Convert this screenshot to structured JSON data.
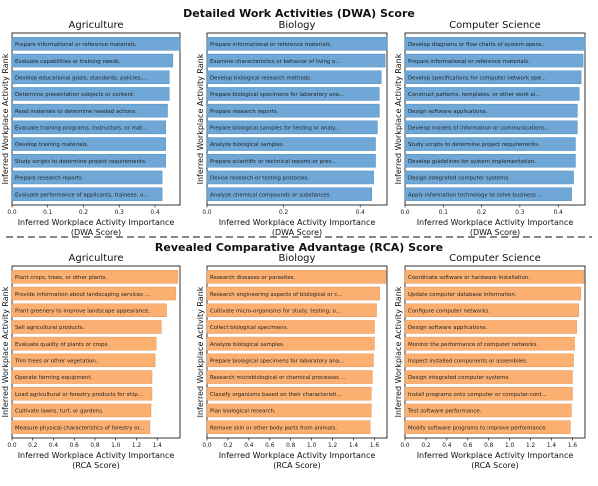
{
  "sections": [
    {
      "title": "Detailed Work Activities (DWA) Score"
    },
    {
      "title": "Revealed Comparative Advantage (RCA) Score"
    }
  ],
  "colors": {
    "dwa_bar": "#6fa8d6",
    "dwa_bar_edge": "#4f8fc0",
    "rca_bar": "#fbb071",
    "rca_bar_edge": "#e6955a",
    "divider": "#888888",
    "text": "#111111"
  },
  "chart_data": [
    {
      "type": "bar",
      "orientation": "horizontal",
      "section": 0,
      "title": "Agriculture",
      "xlabel": "Inferred Workplace Activity Importance\n(DWA Score)",
      "ylabel": "Inferred Workplace Activity Rank",
      "xlim": [
        0,
        0.47
      ],
      "xticks": [
        "0.0",
        "0.1",
        "0.2",
        "0.3",
        "0.4"
      ],
      "xtick_values": [
        0,
        0.1,
        0.2,
        0.3,
        0.4
      ],
      "categories": [
        "Prepare informational or reference materials.",
        "Evaluate capabilities or training needs.",
        "Develop educational goals, standards, policies,...",
        "Determine presentation subjects or content.",
        "Read materials to determine needed actions.",
        "Evaluate training programs, instructors, or mat...",
        "Develop training materials.",
        "Study scripts to determine project requirements.",
        "Prepare research reports.",
        "Evaluate performance of applicants, trainees, o..."
      ],
      "values": [
        0.47,
        0.45,
        0.44,
        0.44,
        0.435,
        0.43,
        0.43,
        0.43,
        0.42,
        0.42
      ]
    },
    {
      "type": "bar",
      "orientation": "horizontal",
      "section": 0,
      "title": "Biology",
      "xlabel": "Inferred Workplace Activity Importance\n(DWA Score)",
      "ylabel": "Inferred Workplace Activity Rank",
      "xlim": [
        0,
        0.47
      ],
      "xticks": [
        "0.0",
        "0.2",
        "0.4"
      ],
      "xtick_values": [
        0,
        0.2,
        0.4
      ],
      "categories": [
        "Prepare informational or reference materials.",
        "Examine characteristics or behavior of living o...",
        "Develop biological research methods.",
        "Prepare biological specimens for laboratory ana...",
        "Prepare research reports.",
        "Prepare biological samples for testing or analy...",
        "Analyze biological samples.",
        "Prepare scientific or technical reports or pres...",
        "Devise research or testing protocols.",
        "Analyze chemical compounds or substances."
      ],
      "values": [
        0.47,
        0.465,
        0.455,
        0.45,
        0.45,
        0.445,
        0.44,
        0.44,
        0.435,
        0.43
      ]
    },
    {
      "type": "bar",
      "orientation": "horizontal",
      "section": 0,
      "title": "Computer Science",
      "xlabel": "Inferred Workplace Activity Importance\n(DWA Score)",
      "ylabel": "Inferred Workplace Activity Rank",
      "xlim": [
        0,
        0.47
      ],
      "xticks": [
        "0.0",
        "0.1",
        "0.2",
        "0.3",
        "0.4"
      ],
      "xtick_values": [
        0,
        0.1,
        0.2,
        0.3,
        0.4
      ],
      "categories": [
        "Develop diagrams or flow charts of system opera...",
        "Prepare informational or reference materials.",
        "Develop specifications for computer network ope...",
        "Construct patterns, templates, or other work ai...",
        "Design software applications.",
        "Develop models of information or communications...",
        "Study scripts to determine project requirements.",
        "Develop guidelines for system implementation.",
        "Design integrated computer systems.",
        "Apply information technology to solve business ..."
      ],
      "values": [
        0.47,
        0.465,
        0.46,
        0.455,
        0.45,
        0.45,
        0.445,
        0.445,
        0.44,
        0.435
      ]
    },
    {
      "type": "bar",
      "orientation": "horizontal",
      "section": 1,
      "title": "Agriculture",
      "xlabel": "Inferred Workplace Activity Importance\n(RCA Score)",
      "ylabel": "Inferred Workplace Activity Rank",
      "xlim": [
        0,
        1.62
      ],
      "xticks": [
        "0.0",
        "0.2",
        "0.4",
        "0.6",
        "0.8",
        "1.0",
        "1.2",
        "1.4"
      ],
      "xtick_values": [
        0,
        0.2,
        0.4,
        0.6,
        0.8,
        1.0,
        1.2,
        1.4
      ],
      "categories": [
        "Plant crops, trees, or other plants.",
        "Provide information about landscaping services ...",
        "Plant greenery to improve landscape appearance.",
        "Sell agricultural products.",
        "Evaluate quality of plants or crops.",
        "Trim trees or other vegetation.",
        "Operate farming equipment.",
        "Load agricultural or forestry products for ship...",
        "Cultivate lawns, turf, or gardens.",
        "Measure physical characteristics of forestry or..."
      ],
      "values": [
        1.6,
        1.58,
        1.49,
        1.44,
        1.39,
        1.38,
        1.35,
        1.35,
        1.34,
        1.33
      ]
    },
    {
      "type": "bar",
      "orientation": "horizontal",
      "section": 1,
      "title": "Biology",
      "xlabel": "Inferred Workplace Activity Importance\n(RCA Score)",
      "ylabel": "Inferred Workplace Activity Rank",
      "xlim": [
        0,
        1.72
      ],
      "xticks": [
        "0.0",
        "0.2",
        "0.4",
        "0.6",
        "0.8",
        "1.0",
        "1.2",
        "1.4",
        "1.6"
      ],
      "xtick_values": [
        0,
        0.2,
        0.4,
        0.6,
        0.8,
        1.0,
        1.2,
        1.4,
        1.6
      ],
      "categories": [
        "Research diseases or parasites.",
        "Research engineering aspects of biological or c...",
        "Cultivate micro-organisms for study, testing, o...",
        "Collect biological specimens.",
        "Analyze biological samples.",
        "Prepare biological specimens for laboratory ana...",
        "Research microbiological or chemical processes ...",
        "Classify organisms based on their characteristi...",
        "Plan biological research.",
        "Remove skin or other body parts from animals."
      ],
      "values": [
        1.71,
        1.65,
        1.62,
        1.6,
        1.6,
        1.59,
        1.58,
        1.57,
        1.57,
        1.56
      ]
    },
    {
      "type": "bar",
      "orientation": "horizontal",
      "section": 1,
      "title": "Computer Science",
      "xlabel": "Inferred Workplace Activity Importance\n(RCA Score)",
      "ylabel": "Inferred Workplace Activity Rank",
      "xlim": [
        0,
        1.72
      ],
      "xticks": [
        "0.0",
        "0.2",
        "0.4",
        "0.6",
        "0.8",
        "1.0",
        "1.2",
        "1.4",
        "1.6"
      ],
      "xtick_values": [
        0,
        0.2,
        0.4,
        0.6,
        0.8,
        1.0,
        1.2,
        1.4,
        1.6
      ],
      "categories": [
        "Coordinate software or hardware installation.",
        "Update computer database information.",
        "Configure computer networks.",
        "Design software applications.",
        "Monitor the performance of computer networks.",
        "Inspect installed components or assemblies.",
        "Design integrated computer systems.",
        "Install programs onto computer or computer-cont...",
        "Test software performance.",
        "Modify software programs to improve performance."
      ],
      "values": [
        1.71,
        1.68,
        1.66,
        1.64,
        1.62,
        1.61,
        1.6,
        1.6,
        1.59,
        1.58
      ]
    }
  ]
}
